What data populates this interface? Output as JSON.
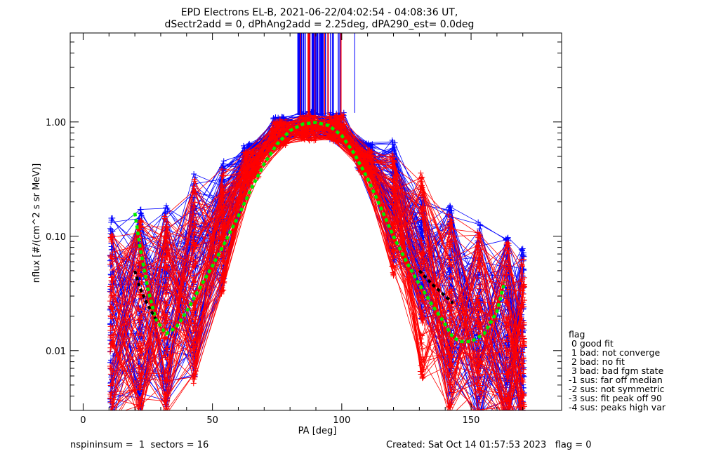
{
  "chart_data": {
    "type": "line",
    "title": "EPD Electrons EL-B, 2021-06-22/04:02:54 - 04:08:36 UT,",
    "subtitle": "dSectr2add = 0, dPhAng2add = 2.25deg, dPA290_est=   0.0deg",
    "xlabel": "PA [deg]",
    "ylabel": "nflux [#/(cm^2 s sr MeV)]",
    "xlim": [
      -5,
      185
    ],
    "ylim": [
      0.003,
      6
    ],
    "yscale": "log",
    "x_ticks": [
      0,
      50,
      100,
      150
    ],
    "y_ticks": [
      {
        "value": 0.01,
        "label": "0.01"
      },
      {
        "value": 0.1,
        "label": "0.10"
      },
      {
        "value": 1.0,
        "label": "1.00"
      }
    ],
    "grid": false,
    "sector_pa": [
      11,
      22,
      32,
      43,
      54,
      65,
      76,
      87,
      98,
      109,
      120,
      131,
      142,
      153,
      164,
      170
    ],
    "series": [
      {
        "color": "#0000ff",
        "values": [
          0.02,
          0.022,
          0.025,
          0.045,
          0.13,
          0.5,
          0.85,
          0.95,
          0.92,
          0.5,
          0.2,
          0.065,
          0.025,
          0.018,
          0.014,
          0.01
        ]
      },
      {
        "color": "#ff0000",
        "values": [
          0.015,
          0.018,
          0.02,
          0.04,
          0.11,
          0.42,
          0.8,
          0.9,
          0.88,
          0.45,
          0.16,
          0.045,
          0.02,
          0.014,
          0.012,
          0.008
        ]
      }
    ],
    "fits": [
      {
        "color": "#00ee00",
        "x": [
          20,
          22,
          25,
          28,
          32,
          36,
          40,
          45,
          50,
          55,
          60,
          65,
          70,
          75,
          80,
          85,
          90,
          95,
          100,
          105,
          110,
          115,
          120,
          125,
          130,
          135,
          140,
          143,
          146,
          150,
          155,
          160,
          163
        ],
        "y": [
          0.16,
          0.08,
          0.035,
          0.019,
          0.014,
          0.016,
          0.022,
          0.035,
          0.055,
          0.09,
          0.15,
          0.26,
          0.43,
          0.64,
          0.84,
          0.96,
          0.99,
          0.93,
          0.76,
          0.52,
          0.32,
          0.18,
          0.1,
          0.06,
          0.038,
          0.025,
          0.017,
          0.013,
          0.012,
          0.012,
          0.014,
          0.022,
          0.04
        ]
      },
      {
        "color": "#000000",
        "x": [
          20,
          22,
          25,
          28
        ],
        "y": [
          0.05,
          0.035,
          0.025,
          0.019
        ]
      },
      {
        "color": "#000000",
        "x": [
          130,
          135,
          140,
          143
        ],
        "y": [
          0.05,
          0.038,
          0.03,
          0.026
        ]
      }
    ],
    "legend": {
      "title": "flag",
      "entries": [
        " 0 good fit",
        " 1 bad: not converge",
        " 2 bad: no fit",
        " 3 bad: bad fgm state",
        "-1 sus: far off median",
        "-2 sus: not symmetric",
        "-3 sus: fit peak off 90",
        "-4 sus: peaks high var"
      ],
      "placement": "right"
    },
    "footer_left": "nspininsum =  1  sectors = 16",
    "footer_right": "Created: Sat Oct 14 01:57:53 2023   flag = 0"
  }
}
